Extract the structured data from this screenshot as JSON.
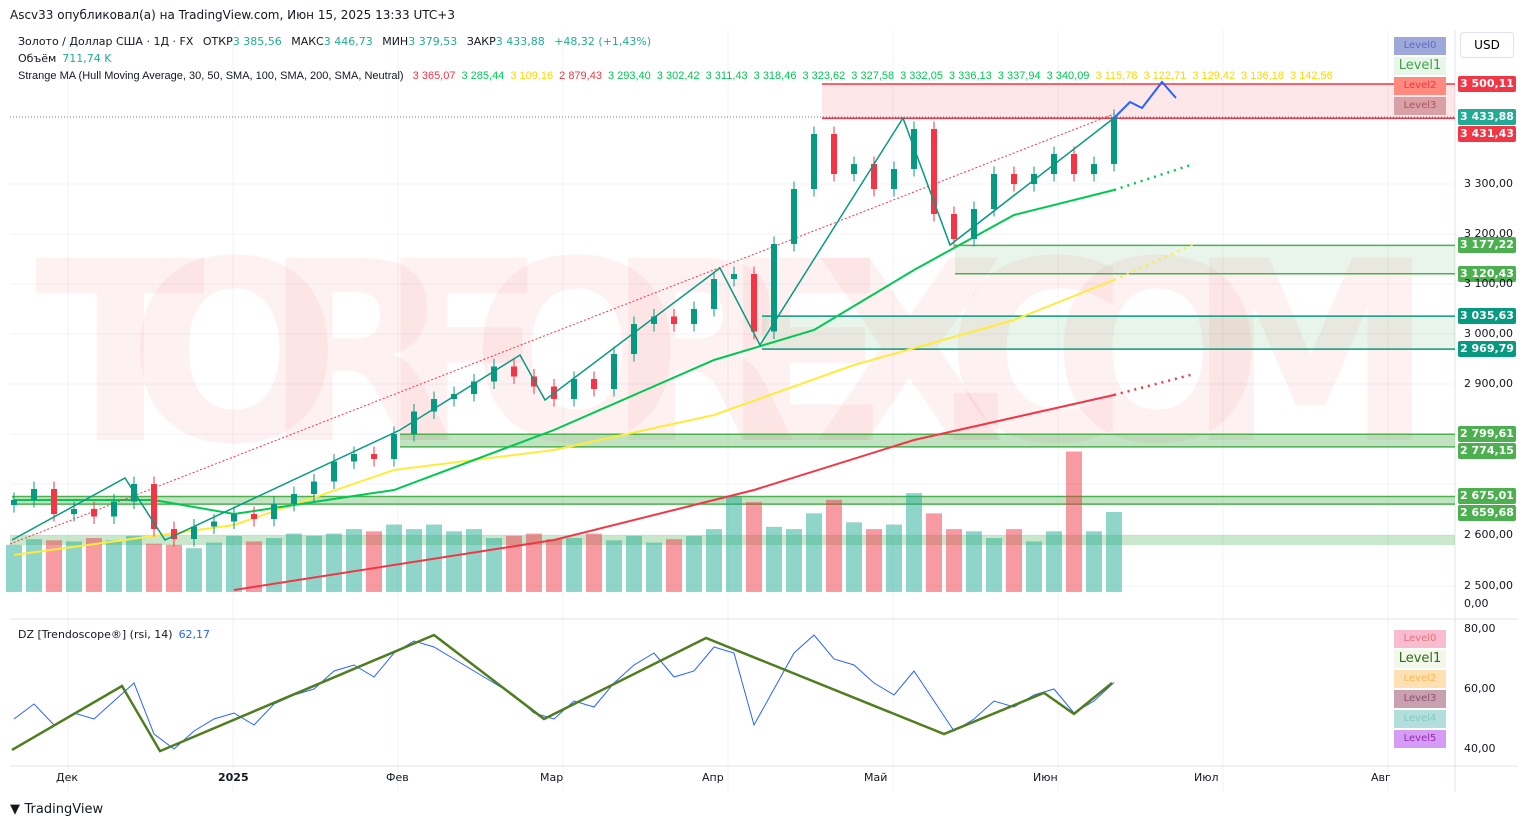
{
  "header": {
    "published": "Ascv33 опубликовал(а) на TradingView.com, Июн 15, 2025 13:33 UTC+3"
  },
  "legend": {
    "symbol": "Золото / Доллар США · 1Д · FX",
    "open_label": "ОТКР",
    "open": "3 385,56",
    "high_label": "МАКС",
    "high": "3 446,73",
    "low_label": "МИН",
    "low": "3 379,53",
    "close_label": "ЗАКР",
    "close": "3 433,88",
    "change": "+48,32 (+1,43%)",
    "volume_label": "Объём",
    "volume": "711,74 K",
    "indicator": "Strange MA (Hull Moving Average, 30, 50, SMA, 100, SMA, 200, SMA, Neutral)",
    "indicator_values": [
      {
        "v": "3 365,07",
        "color": "#f23645"
      },
      {
        "v": "3 285,44",
        "color": "#00c853"
      },
      {
        "v": "3 109,16",
        "color": "#ffd600"
      },
      {
        "v": "2 879,43",
        "color": "#f23645"
      },
      {
        "v": "3 293,40",
        "color": "#00c853"
      },
      {
        "v": "3 302,42",
        "color": "#00c853"
      },
      {
        "v": "3 311,43",
        "color": "#00c853"
      },
      {
        "v": "3 318,46",
        "color": "#00c853"
      },
      {
        "v": "3 323,62",
        "color": "#00c853"
      },
      {
        "v": "3 327,58",
        "color": "#00c853"
      },
      {
        "v": "3 332,05",
        "color": "#00c853"
      },
      {
        "v": "3 336,13",
        "color": "#00c853"
      },
      {
        "v": "3 337,94",
        "color": "#00c853"
      },
      {
        "v": "3 340,09",
        "color": "#00c853"
      },
      {
        "v": "3 115,78",
        "color": "#ffd600"
      },
      {
        "v": "3 122,71",
        "color": "#ffd600"
      },
      {
        "v": "3 129,42",
        "color": "#ffd600"
      },
      {
        "v": "3 136,16",
        "color": "#ffd600"
      },
      {
        "v": "3 142,56",
        "color": "#ffd600"
      }
    ],
    "rsi_label": "DZ [Trendoscope®] (rsi, 14)",
    "rsi_value": "62,17"
  },
  "currency": "USD",
  "levels_top": [
    "Level0",
    "Level1",
    "Level2",
    "Level3"
  ],
  "levels_bottom": [
    "Level0",
    "Level1",
    "Level2",
    "Level3",
    "Level4",
    "Level5"
  ],
  "watermark": "TORFOREX.COM",
  "price_labels": [
    {
      "v": "3 500,11",
      "p": 3500.11,
      "color": "#f23645"
    },
    {
      "v": "3 433,88",
      "p": 3433.88,
      "color": "#22ab94"
    },
    {
      "v": "3 431,43",
      "p": 3431.43,
      "color": "#f23645"
    },
    {
      "v": "3 177,22",
      "p": 3177.22,
      "color": "#4caf50"
    },
    {
      "v": "3 120,43",
      "p": 3120.43,
      "color": "#4caf50"
    },
    {
      "v": "3 035,63",
      "p": 3035.63,
      "color": "#089981"
    },
    {
      "v": "2 969,79",
      "p": 2969.79,
      "color": "#089981"
    },
    {
      "v": "2 799,61",
      "p": 2799.61,
      "color": "#4caf50"
    },
    {
      "v": "2 774,15",
      "p": 2774.15,
      "color": "#4caf50"
    },
    {
      "v": "2 675,01",
      "p": 2675.01,
      "color": "#4caf50"
    },
    {
      "v": "2 659,68",
      "p": 2659.68,
      "color": "#4caf50"
    }
  ],
  "price_axis": [
    "3 300,00",
    "3 200,00",
    "3 100,00",
    "3 000,00",
    "2 900,00",
    "2 600,00",
    "2 500,00",
    "0,00"
  ],
  "rsi_axis": [
    "80,00",
    "60,00",
    "40,00"
  ],
  "time_axis": [
    "Дек",
    "2025",
    "Фев",
    "Мар",
    "Апр",
    "Май",
    "Июн",
    "Июл",
    "Авг"
  ],
  "footer": "TradingView",
  "chart_data": {
    "type": "candlestick",
    "symbol": "XAUUSD 1D",
    "ylim": [
      2500,
      3550
    ],
    "closes": [
      2668,
      2690,
      2640,
      2650,
      2635,
      2665,
      2700,
      2610,
      2590,
      2615,
      2625,
      2640,
      2630,
      2660,
      2680,
      2705,
      2745,
      2760,
      2750,
      2800,
      2845,
      2870,
      2880,
      2905,
      2935,
      2915,
      2895,
      2870,
      2910,
      2890,
      2960,
      3020,
      3035,
      3020,
      3050,
      3110,
      3120,
      3005,
      3180,
      3290,
      3400,
      3320,
      3340,
      3290,
      3330,
      3410,
      3240,
      3190,
      3250,
      3320,
      3300,
      3320,
      3360,
      3320,
      3340,
      3433.88
    ],
    "volumes_k": [
      420,
      470,
      460,
      450,
      480,
      460,
      500,
      430,
      420,
      390,
      440,
      500,
      450,
      480,
      520,
      500,
      520,
      560,
      540,
      600,
      560,
      600,
      540,
      560,
      480,
      500,
      520,
      470,
      480,
      520,
      460,
      500,
      440,
      470,
      500,
      560,
      850,
      800,
      580,
      560,
      700,
      820,
      620,
      560,
      600,
      880,
      700,
      560,
      540,
      480,
      560,
      450,
      540,
      1250,
      540,
      711.74
    ],
    "sma50": [
      [
        0,
        2668
      ],
      [
        7,
        2668
      ],
      [
        11,
        2640
      ],
      [
        19,
        2688
      ],
      [
        27,
        2808
      ],
      [
        35,
        2948
      ],
      [
        40,
        3008
      ],
      [
        45,
        3128
      ],
      [
        50,
        3238
      ],
      [
        55,
        3288
      ]
    ],
    "sma100": [
      [
        0,
        2558
      ],
      [
        11,
        2618
      ],
      [
        19,
        2728
      ],
      [
        27,
        2768
      ],
      [
        35,
        2838
      ],
      [
        42,
        2938
      ],
      [
        50,
        3028
      ],
      [
        55,
        3108
      ]
    ],
    "sma200": [
      [
        11,
        2488
      ],
      [
        27,
        2588
      ],
      [
        37,
        2688
      ],
      [
        45,
        2788
      ],
      [
        55,
        2878
      ]
    ],
    "zones": [
      {
        "from": 3431.43,
        "to": 3500.11,
        "color": "#f23645"
      },
      {
        "from": 3120.43,
        "to": 3177.22,
        "color": "#4caf50"
      },
      {
        "from": 2969.79,
        "to": 3035.63,
        "color": "#4caf50"
      },
      {
        "from": 2774.15,
        "to": 2799.61,
        "color": "#4caf50"
      },
      {
        "from": 2659.68,
        "to": 2675.01,
        "color": "#4caf50"
      }
    ],
    "rsi": [
      50,
      55,
      48,
      52,
      50,
      56,
      62,
      45,
      40,
      46,
      50,
      52,
      48,
      55,
      58,
      60,
      66,
      68,
      64,
      72,
      76,
      74,
      70,
      66,
      62,
      58,
      52,
      50,
      56,
      54,
      62,
      68,
      72,
      64,
      66,
      74,
      72,
      48,
      60,
      72,
      78,
      70,
      68,
      62,
      58,
      66,
      56,
      46,
      50,
      56,
      54,
      58,
      60,
      52,
      56,
      62.17
    ],
    "rsi_zigzag": [
      [
        0,
        39.7
      ],
      [
        5.5,
        61
      ],
      [
        7.4,
        39.3
      ],
      [
        21.1,
        78
      ],
      [
        26.6,
        50
      ],
      [
        34.7,
        77
      ],
      [
        46.6,
        45
      ],
      [
        51.6,
        58.7
      ],
      [
        53.1,
        51.7
      ],
      [
        55,
        62
      ]
    ],
    "rsi_ylim": [
      35,
      85
    ]
  }
}
